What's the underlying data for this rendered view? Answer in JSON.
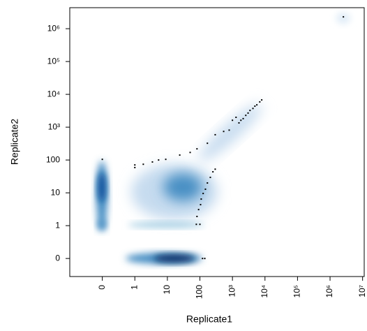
{
  "chart_data": {
    "type": "scatter",
    "xlabel": "Replicate1",
    "ylabel": "Replicate2",
    "xlim": [
      -2,
      7.05
    ],
    "ylim": [
      -1.55,
      6.64
    ],
    "xticks": [
      {
        "value": -1,
        "label": "0"
      },
      {
        "value": 0,
        "label": "1"
      },
      {
        "value": 1,
        "label": "10"
      },
      {
        "value": 2,
        "label": "100"
      },
      {
        "value": 3,
        "label": "10³"
      },
      {
        "value": 4,
        "label": "10⁴"
      },
      {
        "value": 5,
        "label": "10⁵"
      },
      {
        "value": 6,
        "label": "10⁶"
      },
      {
        "value": 7,
        "label": "10⁷"
      }
    ],
    "yticks": [
      {
        "value": -1,
        "label": "0"
      },
      {
        "value": 0,
        "label": "1"
      },
      {
        "value": 1,
        "label": "10"
      },
      {
        "value": 2,
        "label": "100"
      },
      {
        "value": 3,
        "label": "10³"
      },
      {
        "value": 4,
        "label": "10⁴"
      },
      {
        "value": 5,
        "label": "10⁵"
      },
      {
        "value": 6,
        "label": "10⁶"
      }
    ],
    "color": "#000000",
    "x": [
      -1,
      0,
      0,
      0.26,
      0.54,
      0.73,
      0.95,
      1.38,
      1.7,
      1.91,
      2.23,
      2.47,
      2.73,
      2.9,
      3.0,
      3.11,
      3.2,
      3.26,
      3.33,
      3.41,
      3.48,
      3.54,
      3.63,
      3.69,
      3.75,
      3.84,
      3.9,
      1.89,
      2.0,
      1.91,
      1.96,
      2.02,
      2.04,
      2.1,
      2.17,
      2.23,
      2.32,
      2.4,
      2.47,
      2.08,
      2.15,
      6.41
    ],
    "values": [
      2.02,
      1.85,
      1.77,
      1.87,
      1.94,
      2.0,
      2.02,
      2.15,
      2.23,
      2.34,
      2.51,
      2.77,
      2.87,
      2.91,
      3.21,
      3.3,
      3.13,
      3.21,
      3.26,
      3.36,
      3.43,
      3.51,
      3.57,
      3.64,
      3.68,
      3.77,
      3.83,
      0.04,
      0.04,
      0.28,
      0.49,
      0.64,
      0.81,
      0.98,
      1.11,
      1.3,
      1.47,
      1.64,
      1.72,
      -1,
      -1,
      6.36
    ]
  }
}
